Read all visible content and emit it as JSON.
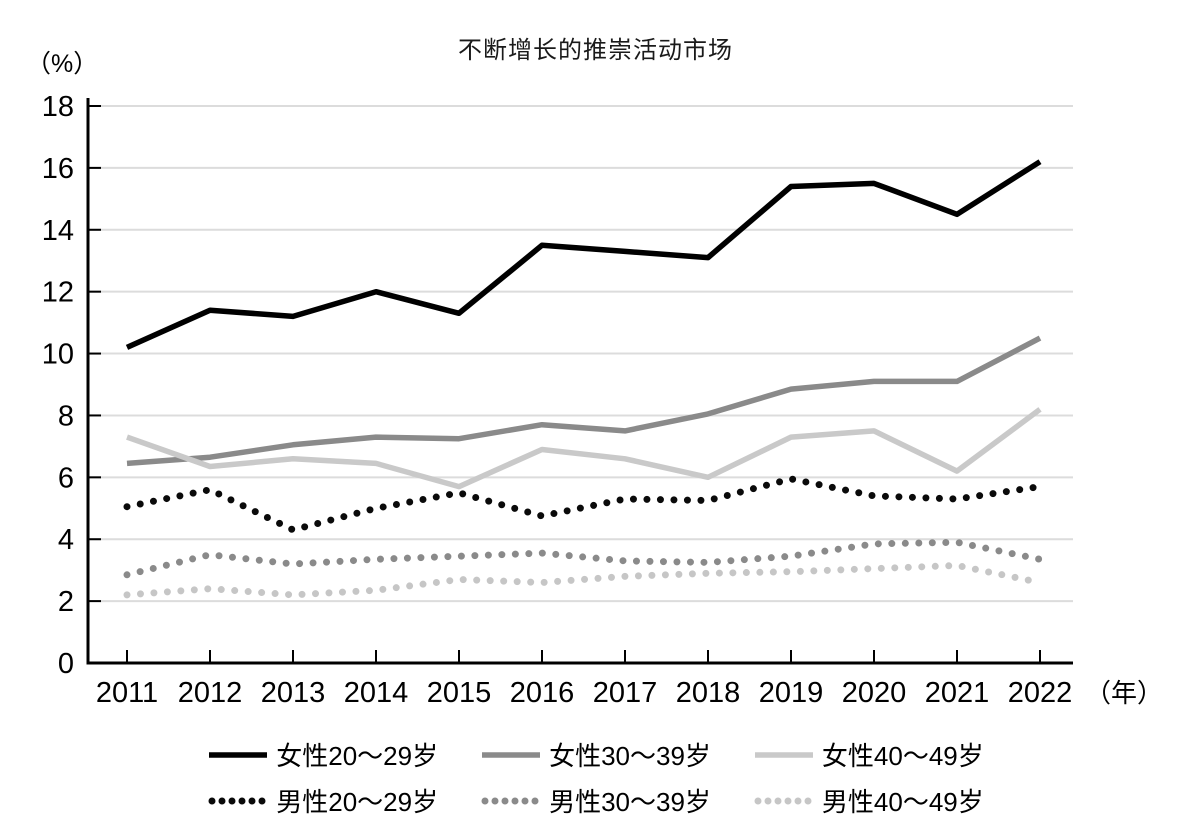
{
  "page": {
    "background": "#ffffff",
    "title": "不断增长的推崇活动市场"
  },
  "chart_data": {
    "type": "line",
    "title": "不断增长的推崇活动市场",
    "y_axis_unit_label": "（%）",
    "x_axis_unit_label": "（年）",
    "x": [
      2011,
      2012,
      2013,
      2014,
      2015,
      2016,
      2017,
      2018,
      2019,
      2020,
      2021,
      2022
    ],
    "ylim": [
      0,
      18
    ],
    "y_tick_step": 2,
    "y_tick_labels": [
      "0",
      "2",
      "4",
      "6",
      "8",
      "10",
      "12",
      "14",
      "16",
      "18"
    ],
    "grid": true,
    "legend_position": "bottom",
    "colors": {
      "axis": "#000000",
      "gridline": "#dcdcdc",
      "text": "#000000",
      "black_series": "#000000",
      "gray_series": "#8a8a8a",
      "light_gray_series": "#c9c9c9",
      "dotted_gray_series": "#8a8a8a",
      "dotted_light_gray_series": "#c6c6c6"
    },
    "series": [
      {
        "name": "女性20～29岁",
        "style": "solid",
        "color": "#000000",
        "values": [
          10.2,
          11.4,
          11.2,
          12.0,
          11.3,
          13.5,
          13.3,
          13.1,
          15.4,
          15.5,
          14.5,
          16.2
        ]
      },
      {
        "name": "女性30～39岁",
        "style": "solid",
        "color": "#8a8a8a",
        "values": [
          6.45,
          6.65,
          7.05,
          7.3,
          7.25,
          7.7,
          7.5,
          8.05,
          8.85,
          9.1,
          9.1,
          10.5
        ]
      },
      {
        "name": "女性40～49岁",
        "style": "solid",
        "color": "#c9c9c9",
        "values": [
          7.3,
          6.35,
          6.6,
          6.45,
          5.7,
          6.9,
          6.6,
          6.0,
          7.3,
          7.5,
          6.2,
          8.2
        ]
      },
      {
        "name": "男性20～29岁",
        "style": "dotted",
        "color": "#0a0a0a",
        "values": [
          5.05,
          5.6,
          4.3,
          5.0,
          5.5,
          4.75,
          5.3,
          5.25,
          5.95,
          5.4,
          5.3,
          5.7
        ]
      },
      {
        "name": "男性30～39岁",
        "style": "dotted",
        "color": "#8a8a8a",
        "values": [
          2.85,
          3.5,
          3.2,
          3.35,
          3.45,
          3.55,
          3.3,
          3.25,
          3.45,
          3.85,
          3.9,
          3.35
        ]
      },
      {
        "name": "男性40～49岁",
        "style": "dotted",
        "color": "#c6c6c6",
        "values": [
          2.2,
          2.4,
          2.2,
          2.35,
          2.7,
          2.6,
          2.8,
          2.9,
          2.95,
          3.05,
          3.15,
          2.6
        ]
      }
    ],
    "legend_rows": [
      [
        0,
        1,
        2
      ],
      [
        3,
        4,
        5
      ]
    ]
  }
}
